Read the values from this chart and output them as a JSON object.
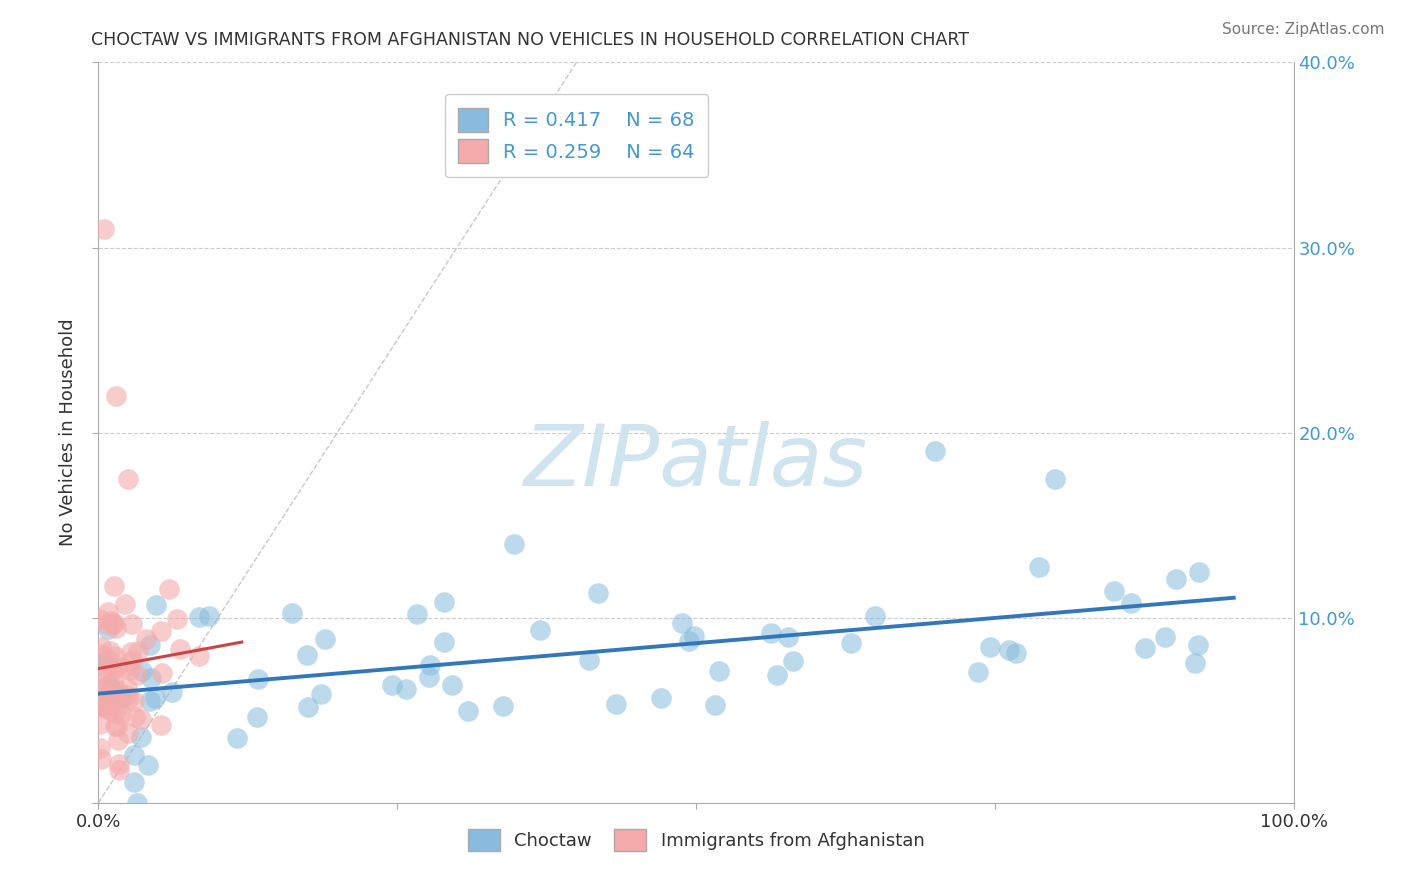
{
  "title": "CHOCTAW VS IMMIGRANTS FROM AFGHANISTAN NO VEHICLES IN HOUSEHOLD CORRELATION CHART",
  "source": "Source: ZipAtlas.com",
  "ylabel": "No Vehicles in Household",
  "xlim": [
    0,
    1.0
  ],
  "ylim": [
    0,
    0.4
  ],
  "xticks": [
    0.0,
    0.25,
    0.5,
    0.75,
    1.0
  ],
  "xticklabels": [
    "0.0%",
    "",
    "",
    "",
    "100.0%"
  ],
  "yticks": [
    0.0,
    0.1,
    0.2,
    0.3,
    0.4
  ],
  "yticklabels": [
    "",
    "10.0%",
    "20.0%",
    "30.0%",
    "40.0%"
  ],
  "blue_color": "#88bbdd",
  "pink_color": "#f4aaaa",
  "blue_line_color": "#3377bb",
  "pink_line_color": "#cc4444",
  "tick_color": "#4499cc",
  "R_blue": 0.417,
  "N_blue": 68,
  "R_pink": 0.259,
  "N_pink": 64,
  "watermark": "ZIPatlas",
  "background_color": "#ffffff",
  "grid_color": "#cccccc",
  "blue_seed": 42,
  "pink_seed": 7
}
